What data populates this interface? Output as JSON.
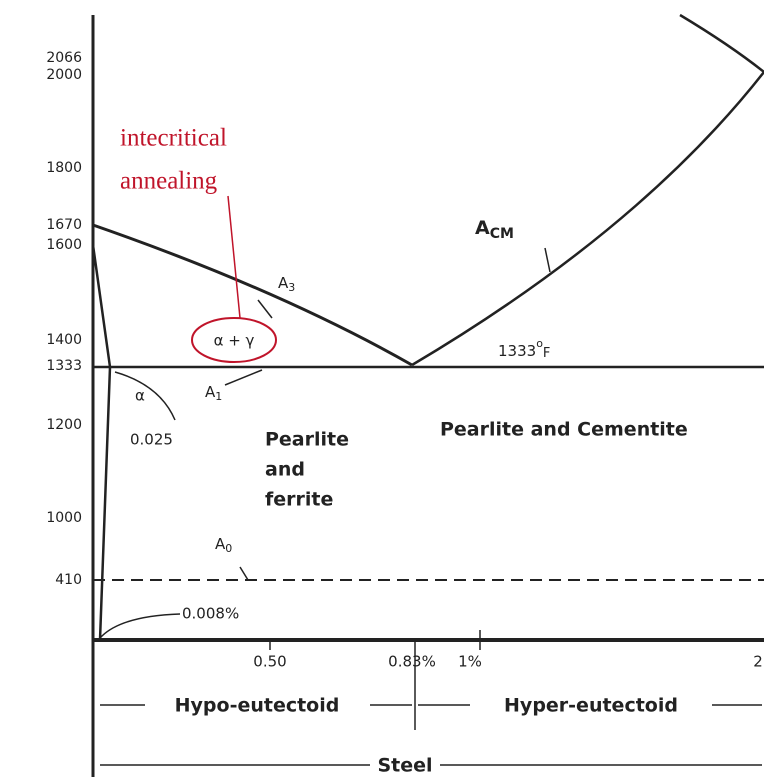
{
  "annotation": {
    "lines": [
      "intecritical",
      "annealing"
    ],
    "circled": "α + γ"
  },
  "y_axis": {
    "ticks": [
      "2066",
      "2000",
      "1800",
      "1670",
      "1600",
      "1400",
      "1333",
      "1200",
      "1000",
      "410"
    ]
  },
  "x_axis": {
    "ticks": [
      "0.50",
      "0.83%",
      "1%",
      "2"
    ]
  },
  "lines": {
    "acm": {
      "main": "A",
      "sub": "CM"
    },
    "a3": {
      "main": "A",
      "sub": "3"
    },
    "a1": {
      "main": "A",
      "sub": "1"
    },
    "a0": {
      "main": "A",
      "sub": "0"
    },
    "eutectoid_temp": {
      "main": "1333",
      "sup": "o",
      "unit": "F"
    }
  },
  "regions": {
    "alpha": "α",
    "alpha_limit": "0.025",
    "pearlite_ferrite": [
      "Pearlite",
      "and",
      "ferrite"
    ],
    "pearlite_cementite": "Pearlite and Cementite",
    "min_solubility": "0.008%"
  },
  "classification": {
    "hypo": "Hypo-eutectoid",
    "hyper": "Hyper-eutectoid",
    "steel": "Steel"
  }
}
